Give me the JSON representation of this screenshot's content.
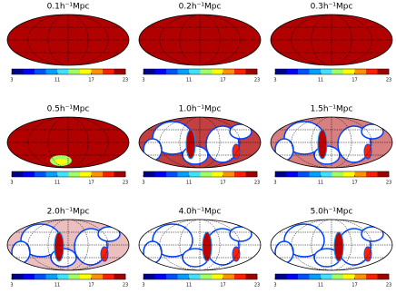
{
  "panels": [
    {
      "title": "0.1h⁻¹Mpc"
    },
    {
      "title": "0.2h⁻¹Mpc"
    },
    {
      "title": "0.3h⁻¹Mpc"
    },
    {
      "title": "0.5h⁻¹Mpc"
    },
    {
      "title": "1.0h⁻¹Mpc"
    },
    {
      "title": "1.5h⁻¹Mpc"
    },
    {
      "title": "2.0h⁻¹Mpc"
    },
    {
      "title": "4.0h⁻¹Mpc"
    },
    {
      "title": "5.0h⁻¹Mpc"
    }
  ],
  "colorbar": {
    "range": [
      3,
      23
    ],
    "ticks": [
      3,
      11,
      17,
      23
    ],
    "colors": [
      "#00008f",
      "#0000ff",
      "#0050ff",
      "#00a0ff",
      "#40e0ff",
      "#a0ff60",
      "#ffff00",
      "#ff9000",
      "#ff2000",
      "#a00000"
    ]
  }
}
